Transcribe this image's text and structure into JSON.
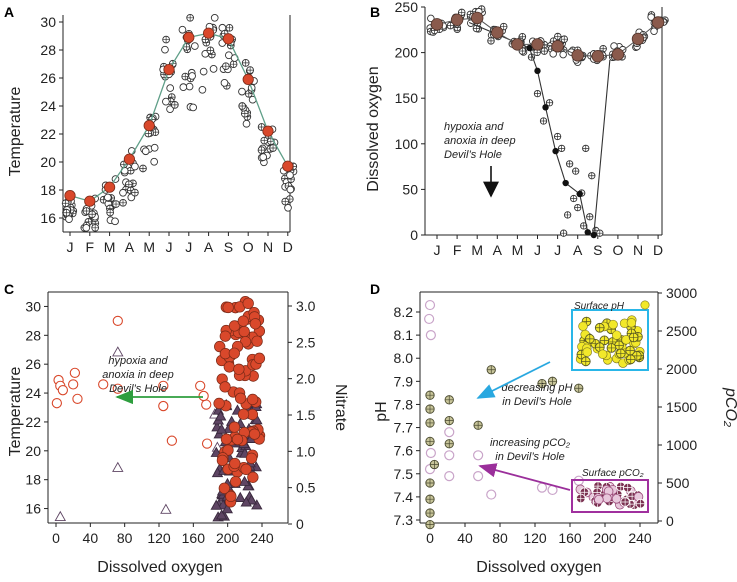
{
  "colors": {
    "red": "#d9482b",
    "brown": "#8a5a4c",
    "dark_purple": "#5e4563",
    "light_purple": "#c9a4c9",
    "line_green": "#5f9f88",
    "arrow_green": "#2e9e3e",
    "arrow_blue": "#29a8e0",
    "arrow_purple": "#9b2f9b",
    "olive": "#c8c59a",
    "yellow": "#f2e82a",
    "box_blue": "#29b6e8",
    "box_magenta": "#a0309e"
  },
  "chart_data": [
    {
      "panel": "A",
      "type": "scatter",
      "ylabel": "Temperature",
      "ylim": [
        15,
        30.5
      ],
      "yticks": [
        "16",
        "18",
        "20",
        "22",
        "24",
        "26",
        "28",
        "30"
      ],
      "xticks": [
        "J",
        "F",
        "M",
        "A",
        "M",
        "J",
        "J",
        "A",
        "S",
        "O",
        "N",
        "D"
      ],
      "mean_line": [
        17.6,
        17.2,
        18.2,
        20.2,
        22.6,
        26.6,
        28.9,
        29.2,
        28.8,
        25.9,
        22.2,
        19.7
      ]
    },
    {
      "panel": "B",
      "type": "scatter",
      "ylabel": "Dissolved oxygen",
      "ylim": [
        0,
        250
      ],
      "yticks": [
        "0",
        "50",
        "100",
        "150",
        "200",
        "250"
      ],
      "xticks": [
        "J",
        "F",
        "M",
        "A",
        "M",
        "J",
        "J",
        "A",
        "S",
        "O",
        "N",
        "D"
      ],
      "mean_line": [
        231,
        236,
        238,
        222,
        209,
        209,
        207,
        197,
        196,
        198,
        215,
        233
      ],
      "deep_line": [
        [
          1.6,
          233
        ],
        [
          4.6,
          205
        ],
        [
          5.0,
          180
        ],
        [
          5.4,
          140
        ],
        [
          5.9,
          92
        ],
        [
          6.4,
          57
        ],
        [
          7.1,
          45
        ],
        [
          7.5,
          3
        ],
        [
          7.8,
          0
        ],
        [
          8.6,
          192
        ]
      ],
      "annotation": [
        "hypoxia and",
        "anoxia in deep",
        "Devil’s Hole"
      ]
    },
    {
      "panel": "C",
      "type": "scatter",
      "xlabel": "Dissolved oxygen",
      "ylabel": "Temperature",
      "ylabel_right": "Nitrate",
      "xlim": [
        0,
        250
      ],
      "ylim": [
        15,
        31
      ],
      "y2lim": [
        0,
        3.2
      ],
      "xticks": [
        "0",
        "40",
        "80",
        "120",
        "160",
        "200",
        "240"
      ],
      "yticks": [
        "16",
        "18",
        "20",
        "22",
        "24",
        "26",
        "28",
        "30"
      ],
      "y2ticks": [
        "0",
        "0.5",
        "1.0",
        "1.5",
        "2.0",
        "2.5",
        "3.0"
      ],
      "annotation": [
        "hypoxia and",
        "anoxia in deep",
        "Devil’s Hole"
      ]
    },
    {
      "panel": "D",
      "type": "scatter",
      "xlabel": "Dissolved oxygen",
      "ylabel": "pH",
      "ylabel_right": "pCO₂",
      "xlim": [
        -5,
        250
      ],
      "ylim": [
        7.25,
        8.3
      ],
      "y2lim": [
        0,
        3000
      ],
      "xticks": [
        "0",
        "40",
        "80",
        "120",
        "160",
        "200",
        "240"
      ],
      "yticks": [
        "7.3",
        "7.4",
        "7.5",
        "7.6",
        "7.7",
        "7.8",
        "7.9",
        "8.0",
        "8.1",
        "8.2"
      ],
      "y2ticks": [
        "0",
        "500",
        "1000",
        "1500",
        "2000",
        "2500",
        "3000"
      ],
      "annotations": {
        "surface_ph": "Surface pH",
        "surface_pco2": "Surface pCO₂",
        "decreasing_ph": [
          "decreasing pH",
          "in Devil’s Hole"
        ],
        "increasing_pco2": [
          "increasing pCO₂",
          "in Devil’s Hole"
        ]
      }
    }
  ]
}
